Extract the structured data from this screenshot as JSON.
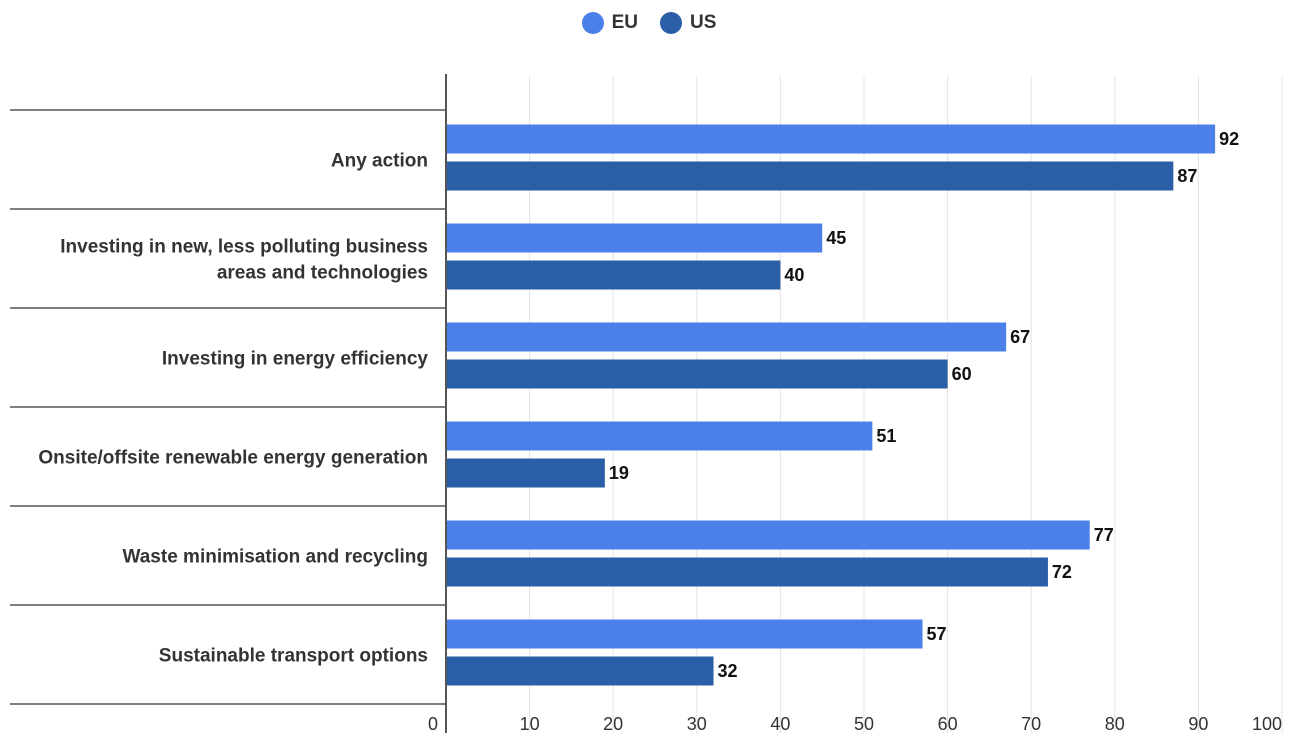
{
  "chart_data": {
    "type": "bar",
    "orientation": "horizontal",
    "categories": [
      [
        "Any action"
      ],
      [
        "Investing in new, less polluting business",
        "areas and technologies"
      ],
      [
        "Investing in energy efficiency"
      ],
      [
        "Onsite/offsite renewable energy generation"
      ],
      [
        "Waste minimisation and recycling"
      ],
      [
        "Sustainable transport options"
      ]
    ],
    "series": [
      {
        "name": "EU",
        "color": "#4a80e8",
        "values": [
          92,
          45,
          67,
          51,
          77,
          57
        ]
      },
      {
        "name": "US",
        "color": "#2a5ea6",
        "values": [
          87,
          40,
          60,
          19,
          72,
          32
        ]
      }
    ],
    "xlim": [
      0,
      100
    ],
    "xticks": [
      0,
      10,
      20,
      30,
      40,
      50,
      60,
      70,
      80,
      90,
      100
    ],
    "grid": true,
    "legend_position": "top-center",
    "data_labels": true
  }
}
